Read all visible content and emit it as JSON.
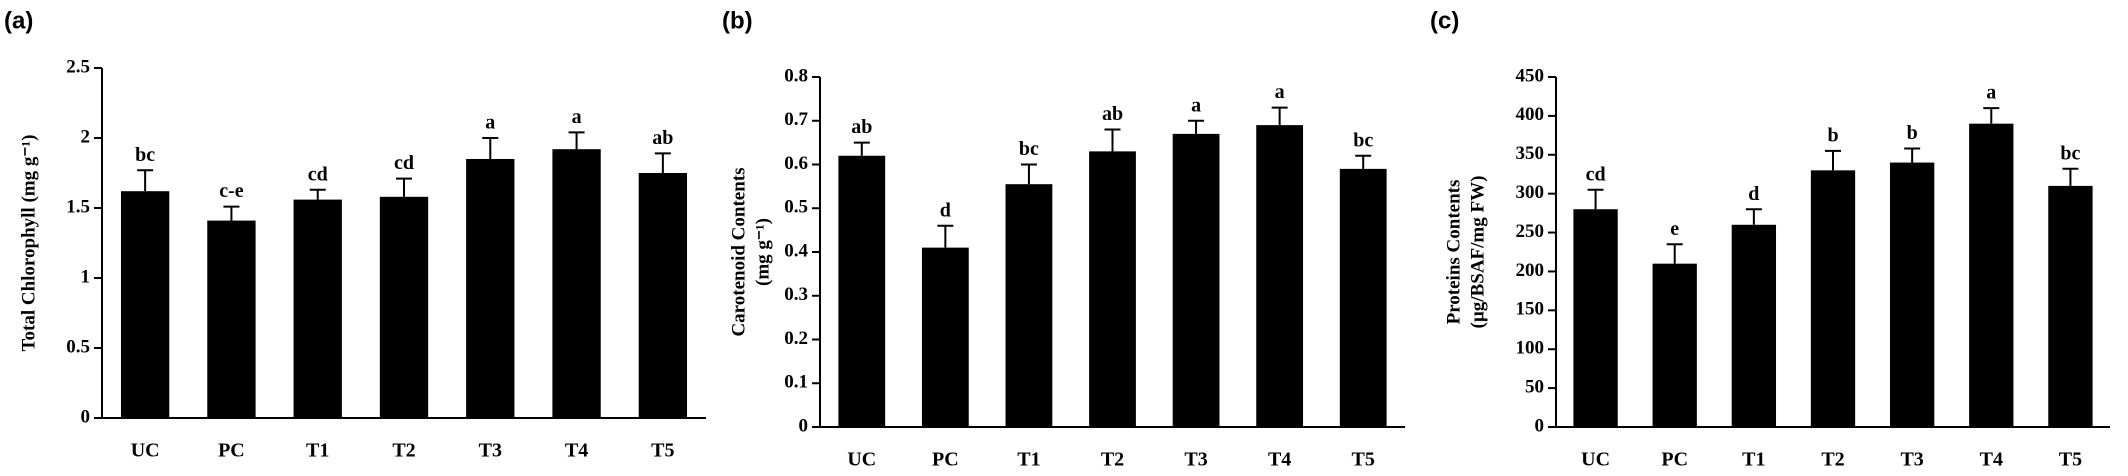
{
  "chart_data": [
    {
      "type": "bar",
      "panel": "(a)",
      "ylabel": [
        "Total Chlorophyll (mg g⁻¹)"
      ],
      "color": "#000000",
      "categories": [
        "UC",
        "PC",
        "T1",
        "T2",
        "T3",
        "T4",
        "T5"
      ],
      "values": [
        1.62,
        1.41,
        1.56,
        1.58,
        1.85,
        1.92,
        1.75
      ],
      "errors": [
        0.15,
        0.1,
        0.07,
        0.13,
        0.15,
        0.12,
        0.14
      ],
      "annotations": [
        "bc",
        "c-e",
        "cd",
        "cd",
        "a",
        "a",
        "ab"
      ],
      "ylim": [
        0,
        2.5
      ],
      "yticks": [
        0,
        0.5,
        1,
        1.5,
        2,
        2.5
      ],
      "grid": false
    },
    {
      "type": "bar",
      "panel": "(b)",
      "ylabel": [
        "Carotenoid Contents",
        "(mg g⁻¹)"
      ],
      "color": "#000000",
      "categories": [
        "UC",
        "PC",
        "T1",
        "T2",
        "T3",
        "T4",
        "T5"
      ],
      "values": [
        0.62,
        0.41,
        0.555,
        0.63,
        0.67,
        0.69,
        0.59
      ],
      "errors": [
        0.03,
        0.05,
        0.045,
        0.05,
        0.03,
        0.04,
        0.03
      ],
      "annotations": [
        "ab",
        "d",
        "bc",
        "ab",
        "a",
        "a",
        "bc"
      ],
      "ylim": [
        0,
        0.8
      ],
      "yticks": [
        0,
        0.1,
        0.2,
        0.3,
        0.4,
        0.5,
        0.6,
        0.7,
        0.8
      ],
      "grid": false
    },
    {
      "type": "bar",
      "panel": "(c)",
      "ylabel": [
        "Proteins Contents",
        "(µg/BSAF/mg FW)"
      ],
      "color": "#000000",
      "categories": [
        "UC",
        "PC",
        "T1",
        "T2",
        "T3",
        "T4",
        "T5"
      ],
      "values": [
        280,
        210,
        260,
        330,
        340,
        390,
        310
      ],
      "errors": [
        25,
        25,
        20,
        25,
        18,
        20,
        22
      ],
      "annotations": [
        "cd",
        "e",
        "d",
        "b",
        "b",
        "a",
        "bc"
      ],
      "ylim": [
        0,
        450
      ],
      "yticks": [
        0,
        50,
        100,
        150,
        200,
        250,
        300,
        350,
        400,
        450
      ],
      "grid": false
    }
  ]
}
